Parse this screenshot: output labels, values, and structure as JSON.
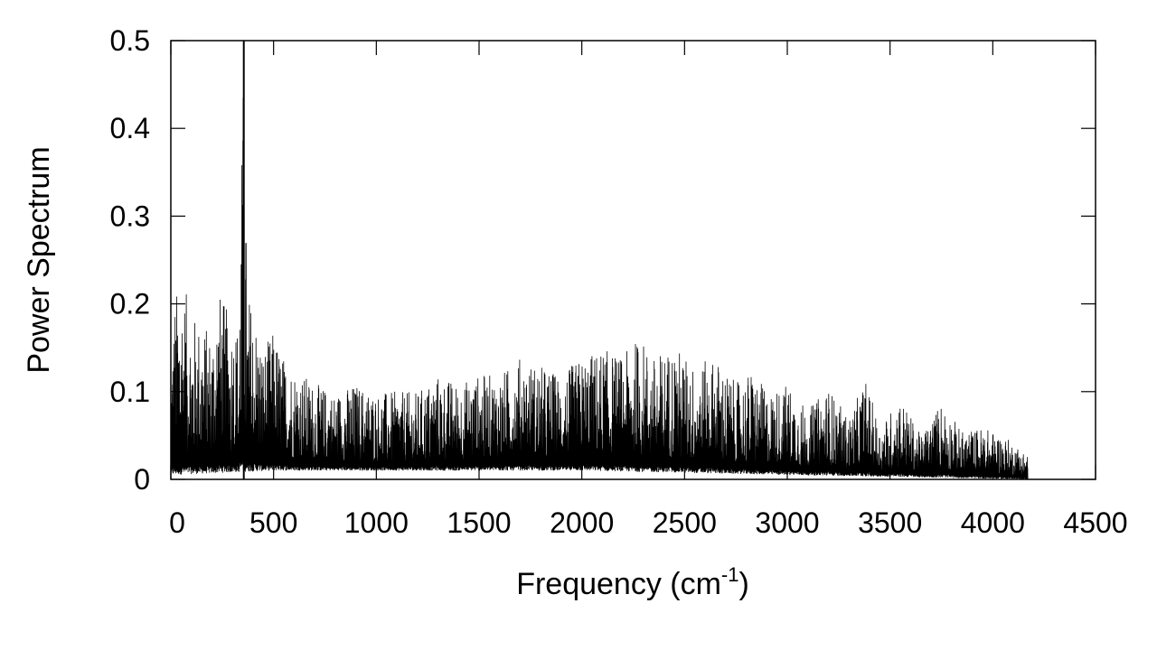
{
  "chart_data": {
    "type": "line",
    "title": "",
    "xlabel": "Frequency (cm",
    "xlabel_superscript": "-1",
    "xlabel_suffix": ")",
    "ylabel": "Power Spectrum",
    "xlim": [
      0,
      4500
    ],
    "ylim": [
      0,
      0.5
    ],
    "x_ticks": [
      0,
      500,
      1000,
      1500,
      2000,
      2500,
      3000,
      3500,
      4000,
      4500
    ],
    "x_tick_labels": [
      "0",
      "500",
      "1000",
      "1500",
      "2000",
      "2500",
      "3000",
      "3500",
      "4000",
      "4500"
    ],
    "y_ticks": [
      0,
      0.1,
      0.2,
      0.3,
      0.4,
      0.5
    ],
    "y_tick_labels": [
      "0",
      "0.1",
      "0.2",
      "0.3",
      "0.4",
      "0.5"
    ],
    "grid": false,
    "legend": "none",
    "line_color": "#000000",
    "series": [
      {
        "x_range": [
          0,
          4170
        ],
        "envelope_max": [
          [
            0,
            0.14
          ],
          [
            20,
            0.21
          ],
          [
            50,
            0.235
          ],
          [
            100,
            0.19
          ],
          [
            150,
            0.18
          ],
          [
            200,
            0.17
          ],
          [
            230,
            0.22
          ],
          [
            280,
            0.19
          ],
          [
            330,
            0.18
          ],
          [
            355,
            0.5
          ],
          [
            370,
            0.22
          ],
          [
            400,
            0.2
          ],
          [
            450,
            0.15
          ],
          [
            500,
            0.17
          ],
          [
            550,
            0.14
          ],
          [
            600,
            0.13
          ],
          [
            700,
            0.11
          ],
          [
            800,
            0.1
          ],
          [
            900,
            0.11
          ],
          [
            1000,
            0.1
          ],
          [
            1100,
            0.1
          ],
          [
            1200,
            0.1
          ],
          [
            1300,
            0.12
          ],
          [
            1400,
            0.11
          ],
          [
            1500,
            0.12
          ],
          [
            1600,
            0.12
          ],
          [
            1700,
            0.14
          ],
          [
            1800,
            0.13
          ],
          [
            1900,
            0.12
          ],
          [
            2000,
            0.14
          ],
          [
            2100,
            0.15
          ],
          [
            2200,
            0.14
          ],
          [
            2280,
            0.165
          ],
          [
            2350,
            0.14
          ],
          [
            2450,
            0.155
          ],
          [
            2550,
            0.13
          ],
          [
            2650,
            0.14
          ],
          [
            2750,
            0.11
          ],
          [
            2830,
            0.125
          ],
          [
            2900,
            0.1
          ],
          [
            3000,
            0.11
          ],
          [
            3100,
            0.08
          ],
          [
            3200,
            0.105
          ],
          [
            3300,
            0.07
          ],
          [
            3380,
            0.115
          ],
          [
            3450,
            0.06
          ],
          [
            3550,
            0.095
          ],
          [
            3650,
            0.05
          ],
          [
            3750,
            0.09
          ],
          [
            3850,
            0.055
          ],
          [
            3950,
            0.06
          ],
          [
            4050,
            0.05
          ],
          [
            4170,
            0.03
          ]
        ],
        "envelope_min": [
          [
            0,
            0.005
          ],
          [
            500,
            0.01
          ],
          [
            1000,
            0.01
          ],
          [
            2000,
            0.01
          ],
          [
            3000,
            0.005
          ],
          [
            4170,
            0.0
          ]
        ]
      }
    ]
  }
}
